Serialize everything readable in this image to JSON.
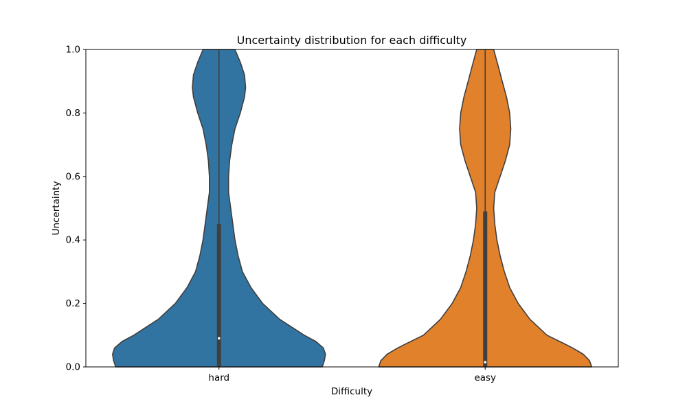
{
  "chart_data": {
    "type": "violin",
    "title": "Uncertainty distribution for each difficulty",
    "xlabel": "Difficulty",
    "ylabel": "Uncertainty",
    "ylim": [
      0.0,
      1.0
    ],
    "yticks": [
      "0.0",
      "0.2",
      "0.4",
      "0.6",
      "0.8",
      "1.0"
    ],
    "grid": false,
    "categories": [
      "hard",
      "easy"
    ],
    "series": [
      {
        "category": "hard",
        "color": "#3274a1",
        "median": 0.09,
        "q1": 0.0,
        "q3": 0.45,
        "whisker_low": 0.0,
        "whisker_high": 1.0,
        "density_y": [
          0.0,
          0.02,
          0.04,
          0.06,
          0.08,
          0.1,
          0.15,
          0.2,
          0.25,
          0.3,
          0.35,
          0.4,
          0.45,
          0.5,
          0.55,
          0.6,
          0.65,
          0.7,
          0.75,
          0.8,
          0.85,
          0.88,
          0.92,
          0.96,
          1.0
        ],
        "density_w": [
          0.97,
          0.99,
          1.0,
          0.98,
          0.91,
          0.8,
          0.57,
          0.41,
          0.3,
          0.22,
          0.18,
          0.15,
          0.13,
          0.11,
          0.09,
          0.09,
          0.1,
          0.12,
          0.15,
          0.2,
          0.24,
          0.25,
          0.24,
          0.2,
          0.15
        ]
      },
      {
        "category": "easy",
        "color": "#e1812c",
        "median": 0.015,
        "q1": 0.0,
        "q3": 0.49,
        "whisker_low": 0.0,
        "whisker_high": 1.0,
        "density_y": [
          0.0,
          0.02,
          0.04,
          0.06,
          0.08,
          0.1,
          0.15,
          0.2,
          0.25,
          0.3,
          0.35,
          0.4,
          0.45,
          0.5,
          0.55,
          0.6,
          0.65,
          0.7,
          0.75,
          0.8,
          0.85,
          0.9,
          0.95,
          1.0
        ],
        "density_w": [
          1.0,
          0.98,
          0.92,
          0.82,
          0.7,
          0.58,
          0.42,
          0.31,
          0.23,
          0.18,
          0.14,
          0.11,
          0.09,
          0.08,
          0.09,
          0.14,
          0.19,
          0.23,
          0.24,
          0.23,
          0.2,
          0.16,
          0.12,
          0.08
        ]
      }
    ]
  }
}
